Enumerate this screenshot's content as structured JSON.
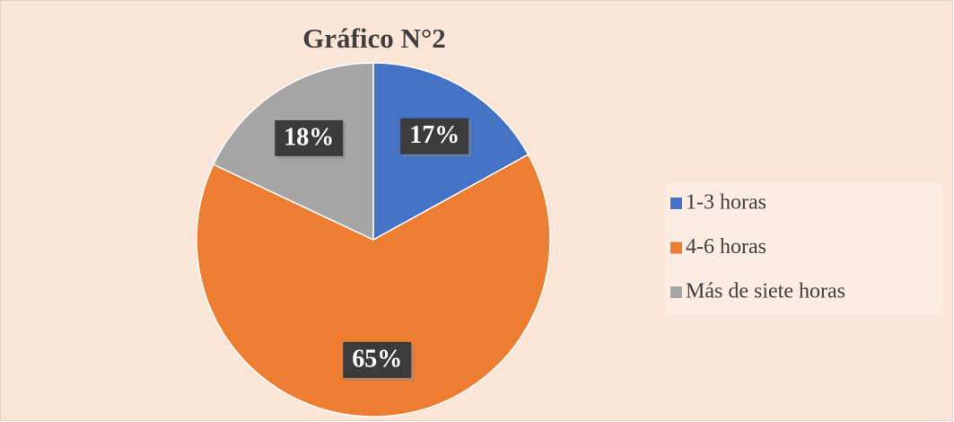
{
  "chart_data": {
    "type": "pie",
    "title": "Gráfico N°2",
    "categories": [
      "1-3 horas",
      "4-6 horas",
      "Más de siete horas"
    ],
    "values": [
      17,
      65,
      18
    ],
    "value_labels": [
      "17%",
      "65%",
      "18%"
    ],
    "colors": [
      "#4472c4",
      "#ed7d31",
      "#a5a5a5"
    ],
    "legend": "right"
  }
}
